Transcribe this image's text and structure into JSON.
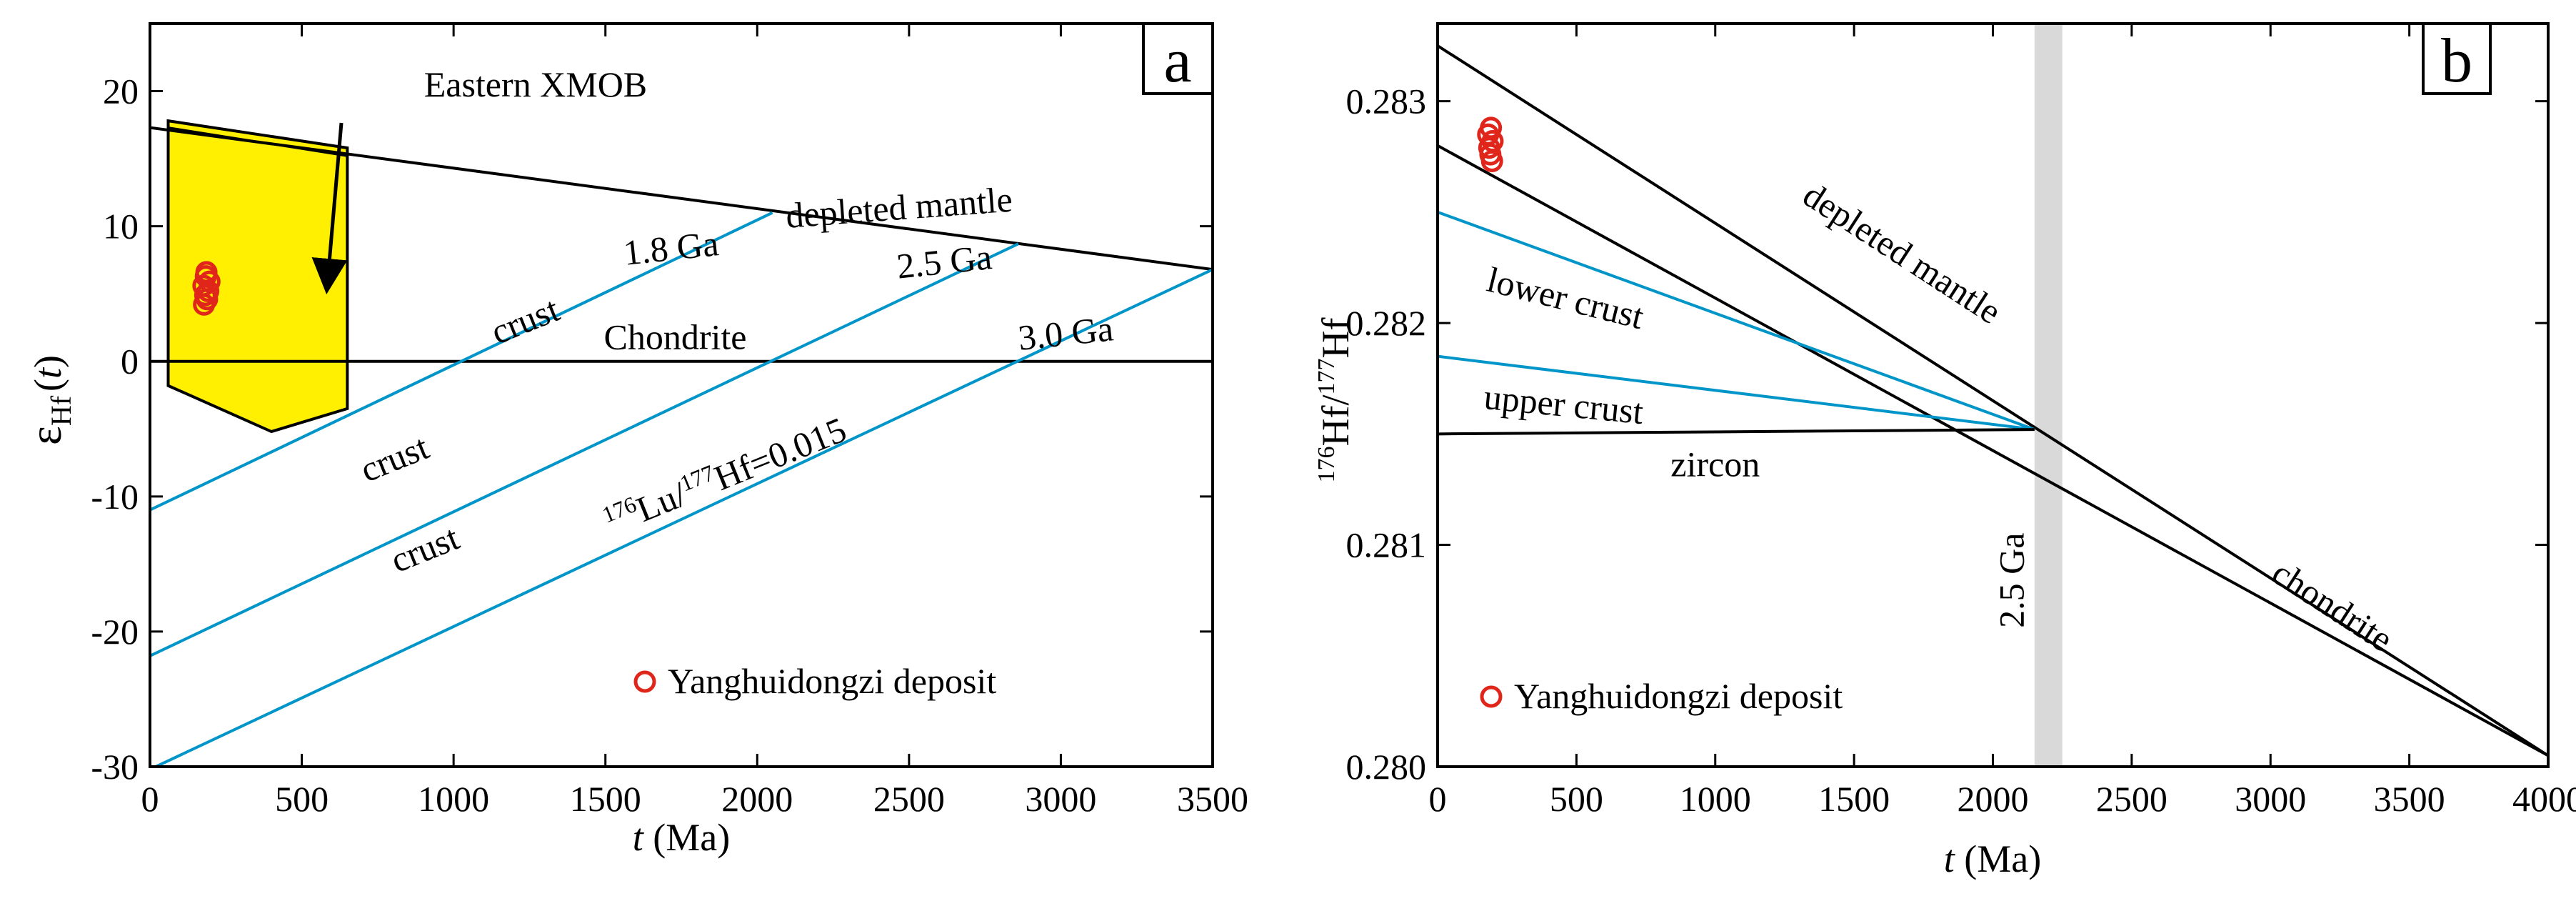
{
  "colors": {
    "black": "#000000",
    "crust_blue": "#0095c8",
    "data_red": "#e0261b",
    "field_yellow": "#ffef00",
    "band_gray": "#d9d9d9"
  },
  "chart_data": [
    {
      "id": "a",
      "type": "line",
      "panel_label": "a",
      "xlabel_italic": "t",
      "xlabel_rest": " (Ma)",
      "ylabel_eps": "ε",
      "ylabel_sub": "Hf",
      "ylabel_t": "t",
      "xlim": [
        0,
        3500
      ],
      "ylim": [
        -30,
        25
      ],
      "xticks": [
        0,
        500,
        1000,
        1500,
        2000,
        2500,
        3000,
        3500
      ],
      "xtick_labels": [
        "0",
        "500",
        "1000",
        "1500",
        "2000",
        "2500",
        "3000",
        "3500"
      ],
      "yticks": [
        -30,
        -20,
        -10,
        0,
        10,
        20
      ],
      "ytick_labels": [
        "-30",
        "-20",
        "-10",
        "0",
        "10",
        "20"
      ],
      "series": [
        {
          "name": "depleted mantle",
          "color": "#000000",
          "points": [
            [
              0,
              17.3
            ],
            [
              3500,
              6.8
            ]
          ]
        },
        {
          "name": "Chondrite",
          "color": "#000000",
          "points": [
            [
              0,
              0
            ],
            [
              3500,
              0
            ]
          ]
        },
        {
          "name": "crust 1.8 Ga",
          "color": "#0095c8",
          "points": [
            [
              0,
              -11.0
            ],
            [
              2050,
              11.0
            ]
          ]
        },
        {
          "name": "crust 2.5 Ga",
          "color": "#0095c8",
          "points": [
            [
              0,
              -21.8
            ],
            [
              2860,
              8.7
            ]
          ]
        },
        {
          "name": "crust 3.0 Ga",
          "color": "#0095c8",
          "points": [
            [
              0,
              -30.2
            ],
            [
              3500,
              6.8
            ]
          ]
        }
      ],
      "field": {
        "name": "Eastern XMOB",
        "color": "#ffef00",
        "polygon": [
          [
            60,
            17.8
          ],
          [
            650,
            15.8
          ],
          [
            650,
            -3.5
          ],
          [
            400,
            -5.2
          ],
          [
            60,
            -1.8
          ]
        ],
        "inner_line": [
          [
            60,
            17.3
          ],
          [
            650,
            15.2
          ]
        ]
      },
      "points": {
        "name": "Yanghuidongzi deposit",
        "color": "#e0261b",
        "values": [
          [
            186,
            6.6
          ],
          [
            184,
            6.3
          ],
          [
            196,
            5.9
          ],
          [
            176,
            5.6
          ],
          [
            192,
            5.2
          ],
          [
            182,
            4.9
          ],
          [
            188,
            4.6
          ],
          [
            178,
            4.2
          ]
        ]
      },
      "legend": {
        "label": "Yanghuidongzi deposit",
        "position": "bottom-right"
      },
      "annotations": [
        {
          "key": "field",
          "text": "Eastern XMOB",
          "x": 1270,
          "y": 19.6
        },
        {
          "key": "dm",
          "text": "depleted mantle",
          "x": 2470,
          "y": 10.5,
          "rotate": -4.2
        },
        {
          "key": "chondrite",
          "text": "Chondrite",
          "x": 1730,
          "y": 0.9
        },
        {
          "key": "c18",
          "text": "1.8 Ga",
          "x": 1720,
          "y": 7.5,
          "rotate": -6
        },
        {
          "key": "c25",
          "text": "2.5 Ga",
          "x": 2620,
          "y": 6.5,
          "rotate": -6
        },
        {
          "key": "c30",
          "text": "3.0 Ga",
          "x": 3020,
          "y": 1.2,
          "rotate": -6
        },
        {
          "key": "crust1",
          "text": "crust",
          "x": 1250,
          "y": 2.2,
          "rotate": -22,
          "color": "#0095c8"
        },
        {
          "key": "crust2",
          "text": "crust",
          "x": 820,
          "y": -8.0,
          "rotate": -22,
          "color": "#0095c8"
        },
        {
          "key": "crust3",
          "text": "crust",
          "x": 920,
          "y": -14.7,
          "rotate": -22,
          "color": "#0095c8"
        },
        {
          "key": "lu",
          "x": 1910,
          "y": -9.3,
          "rotate": -22,
          "color": "#0095c8",
          "sup1": "176",
          "t1": "Lu/",
          "sup2": "177",
          "t2": "Hf=0.015"
        }
      ]
    },
    {
      "id": "b",
      "type": "line",
      "panel_label": "b",
      "xlabel_italic": "t",
      "xlabel_rest": " (Ma)",
      "ylabel_sup1": "176",
      "ylabel_t1": "Hf/",
      "ylabel_sup2": "177",
      "ylabel_t2": "Hf",
      "xlim": [
        0,
        4000
      ],
      "ylim": [
        0.28,
        0.28335
      ],
      "xticks": [
        0,
        500,
        1000,
        1500,
        2000,
        2500,
        3000,
        3500,
        4000
      ],
      "xtick_labels": [
        "0",
        "500",
        "1000",
        "1500",
        "2000",
        "2500",
        "3000",
        "3500",
        "4000"
      ],
      "yticks": [
        0.28,
        0.281,
        0.282,
        0.283
      ],
      "ytick_labels": [
        "0.280",
        "0.281",
        "0.282",
        "0.283"
      ],
      "series": [
        {
          "name": "depleted mantle",
          "color": "#000000",
          "points": [
            [
              0,
              0.28325
            ],
            [
              4000,
              0.28005
            ]
          ]
        },
        {
          "name": "chondrite",
          "color": "#000000",
          "points": [
            [
              0,
              0.2828
            ],
            [
              4000,
              0.28005
            ]
          ]
        },
        {
          "name": "lower crust",
          "color": "#0095c8",
          "points": [
            [
              0,
              0.2825
            ],
            [
              2150,
              0.28152
            ]
          ]
        },
        {
          "name": "upper crust",
          "color": "#0095c8",
          "points": [
            [
              0,
              0.28185
            ],
            [
              2150,
              0.28152
            ]
          ]
        },
        {
          "name": "zircon",
          "color": "#000000",
          "points": [
            [
              0,
              0.2815
            ],
            [
              2150,
              0.28152
            ]
          ]
        }
      ],
      "band": {
        "label": "2.5 Ga",
        "x_from": 2150,
        "x_to": 2250,
        "color": "#d9d9d9"
      },
      "points": {
        "name": "Yanghuidongzi deposit",
        "color": "#e0261b",
        "values": [
          [
            192,
            0.28288
          ],
          [
            182,
            0.28285
          ],
          [
            198,
            0.28282
          ],
          [
            186,
            0.28279
          ],
          [
            190,
            0.28276
          ],
          [
            196,
            0.28273
          ]
        ]
      },
      "legend": {
        "label": "Yanghuidongzi deposit",
        "position": "bottom-left"
      },
      "annotations": [
        {
          "key": "dm",
          "text": "depleted mantle",
          "x": 1650,
          "y": 0.28227,
          "rotate": 33
        },
        {
          "key": "lower",
          "text": "lower crust",
          "x": 450,
          "y": 0.28206,
          "rotate": 14
        },
        {
          "key": "upper",
          "text": "upper crust",
          "x": 450,
          "y": 0.28158,
          "rotate": 5.5
        },
        {
          "key": "zircon",
          "text": "zircon",
          "x": 1000,
          "y": 0.28131
        },
        {
          "key": "chondrite",
          "text": "chondrite",
          "x": 3200,
          "y": 0.28068,
          "rotate": 33
        },
        {
          "key": "ga",
          "text": "2.5 Ga",
          "x": 2110,
          "y": 0.28084,
          "rotate": -90
        }
      ]
    }
  ]
}
